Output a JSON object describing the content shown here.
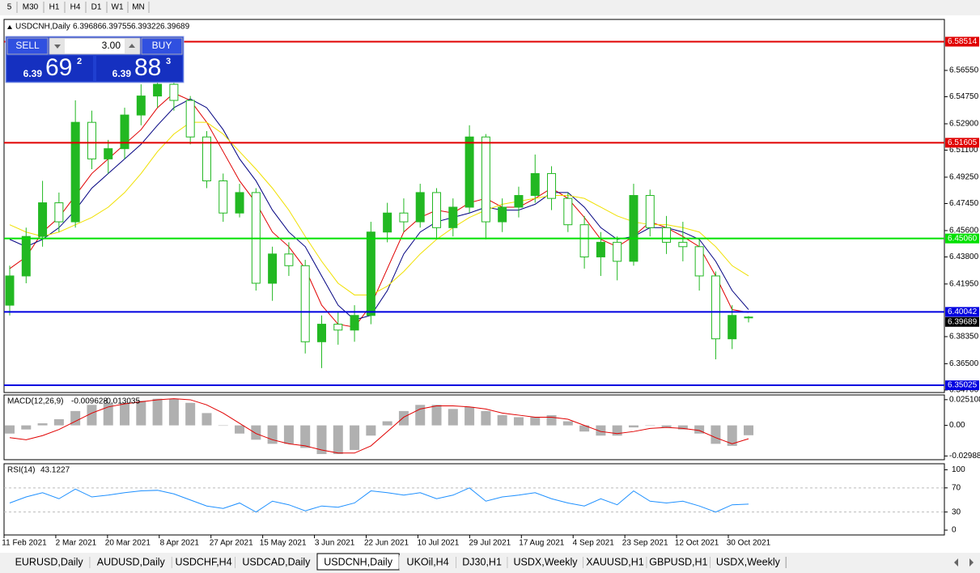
{
  "toolbar": {
    "timeframes": [
      "5",
      "M30",
      "H1",
      "H4",
      "D1",
      "W1",
      "MN"
    ]
  },
  "chart_data": {
    "type": "candlestick",
    "symbol": "USDCNH,Daily",
    "color": "#22b822",
    "candles": [
      [
        6.405,
        6.432,
        6.398,
        6.425
      ],
      [
        6.425,
        6.458,
        6.42,
        6.452
      ],
      [
        6.452,
        6.49,
        6.445,
        6.475
      ],
      [
        6.475,
        6.482,
        6.455,
        6.462
      ],
      [
        6.462,
        6.545,
        6.458,
        6.53
      ],
      [
        6.53,
        6.538,
        6.498,
        6.505
      ],
      [
        6.505,
        6.518,
        6.495,
        6.512
      ],
      [
        6.512,
        6.54,
        6.505,
        6.535
      ],
      [
        6.535,
        6.556,
        6.528,
        6.548
      ],
      [
        6.548,
        6.566,
        6.54,
        6.556
      ],
      [
        6.556,
        6.56,
        6.538,
        6.545
      ],
      [
        6.545,
        6.548,
        6.515,
        6.52
      ],
      [
        6.52,
        6.524,
        6.485,
        6.49
      ],
      [
        6.49,
        6.495,
        6.462,
        6.468
      ],
      [
        6.468,
        6.488,
        6.465,
        6.482
      ],
      [
        6.482,
        6.485,
        6.415,
        6.42
      ],
      [
        6.42,
        6.445,
        6.408,
        6.44
      ],
      [
        6.44,
        6.448,
        6.425,
        6.432
      ],
      [
        6.432,
        6.436,
        6.372,
        6.38
      ],
      [
        6.38,
        6.398,
        6.362,
        6.392
      ],
      [
        6.392,
        6.4,
        6.378,
        6.388
      ],
      [
        6.388,
        6.405,
        6.38,
        6.398
      ],
      [
        6.398,
        6.462,
        6.392,
        6.455
      ],
      [
        6.455,
        6.475,
        6.448,
        6.468
      ],
      [
        6.468,
        6.478,
        6.455,
        6.462
      ],
      [
        6.462,
        6.488,
        6.458,
        6.482
      ],
      [
        6.482,
        6.485,
        6.45,
        6.458
      ],
      [
        6.458,
        6.478,
        6.452,
        6.472
      ],
      [
        6.472,
        6.528,
        6.468,
        6.52
      ],
      [
        6.52,
        6.522,
        6.45,
        6.462
      ],
      [
        6.462,
        6.478,
        6.455,
        6.472
      ],
      [
        6.472,
        6.486,
        6.465,
        6.48
      ],
      [
        6.48,
        6.508,
        6.475,
        6.495
      ],
      [
        6.495,
        6.5,
        6.47,
        6.478
      ],
      [
        6.478,
        6.482,
        6.455,
        6.46
      ],
      [
        6.46,
        6.466,
        6.43,
        6.438
      ],
      [
        6.438,
        6.455,
        6.425,
        6.448
      ],
      [
        6.448,
        6.452,
        6.422,
        6.435
      ],
      [
        6.435,
        6.488,
        6.432,
        6.48
      ],
      [
        6.48,
        6.484,
        6.452,
        6.458
      ],
      [
        6.458,
        6.466,
        6.44,
        6.448
      ],
      [
        6.448,
        6.462,
        6.435,
        6.445
      ],
      [
        6.445,
        6.45,
        6.415,
        6.425
      ],
      [
        6.425,
        6.428,
        6.368,
        6.382
      ],
      [
        6.382,
        6.405,
        6.375,
        6.398
      ],
      [
        6.39686,
        6.39755,
        6.39322,
        6.39689
      ]
    ],
    "overlays": [
      {
        "color": "#e00000",
        "values": [
          6.43,
          6.438,
          6.455,
          6.465,
          6.48,
          6.495,
          6.505,
          6.515,
          6.525,
          6.54,
          6.55,
          6.545,
          6.53,
          6.51,
          6.49,
          6.475,
          6.455,
          6.445,
          6.43,
          6.405,
          6.392,
          6.39,
          6.405,
          6.43,
          6.455,
          6.465,
          6.47,
          6.468,
          6.475,
          6.478,
          6.472,
          6.472,
          6.478,
          6.485,
          6.478,
          6.465,
          6.45,
          6.445,
          6.452,
          6.462,
          6.458,
          6.452,
          6.445,
          6.425,
          6.402,
          6.4
        ]
      },
      {
        "color": "#000080",
        "values": [
          6.45,
          6.445,
          6.45,
          6.458,
          6.47,
          6.485,
          6.495,
          6.505,
          6.515,
          6.528,
          6.54,
          6.546,
          6.54,
          6.525,
          6.505,
          6.49,
          6.47,
          6.455,
          6.445,
          6.425,
          6.405,
          6.395,
          6.398,
          6.415,
          6.44,
          6.455,
          6.462,
          6.465,
          6.468,
          6.472,
          6.47,
          6.47,
          6.474,
          6.482,
          6.482,
          6.472,
          6.458,
          6.45,
          6.452,
          6.458,
          6.458,
          6.455,
          6.45,
          6.435,
          6.415,
          6.402
        ]
      },
      {
        "color": "#f0e000",
        "values": [
          6.46,
          6.455,
          6.452,
          6.455,
          6.46,
          6.465,
          6.472,
          6.482,
          6.495,
          6.51,
          6.522,
          6.53,
          6.53,
          6.522,
          6.51,
          6.498,
          6.485,
          6.47,
          6.452,
          6.435,
          6.42,
          6.412,
          6.412,
          6.418,
          6.428,
          6.44,
          6.45,
          6.458,
          6.465,
          6.47,
          6.474,
          6.476,
          6.478,
          6.48,
          6.48,
          6.478,
          6.472,
          6.466,
          6.462,
          6.46,
          6.46,
          6.458,
          6.455,
          6.445,
          6.432,
          6.425
        ]
      }
    ],
    "ylim": [
      6.3453,
      6.5998
    ],
    "yticks": [
      {
        "value": 6.5655,
        "label": "6.56550"
      },
      {
        "value": 6.5475,
        "label": "6.54750"
      },
      {
        "value": 6.529,
        "label": "6.52900"
      },
      {
        "value": 6.511,
        "label": "6.51100"
      },
      {
        "value": 6.4925,
        "label": "6.49250"
      },
      {
        "value": 6.4745,
        "label": "6.47450"
      },
      {
        "value": 6.456,
        "label": "6.45600"
      },
      {
        "value": 6.438,
        "label": "6.43800"
      },
      {
        "value": 6.4195,
        "label": "6.41950"
      },
      {
        "value": 6.3835,
        "label": "6.38350"
      },
      {
        "value": 6.365,
        "label": "6.36500"
      },
      {
        "value": 6.347,
        "label": "6.34700"
      }
    ],
    "levels": [
      {
        "value": 6.58514,
        "color": "#e00000"
      },
      {
        "value": 6.51605,
        "color": "#e00000"
      },
      {
        "value": {
          "value": 6.4506,
          "label": "6.45060"
        },
        "color": "#00e000"
      },
      {
        "value": 6.40042,
        "color": "#0000e0"
      },
      {
        "value": 6.35025,
        "color": "#0000e0"
      }
    ],
    "x_labels": [
      "11 Feb 2021",
      "2 Mar 2021",
      "20 Mar 2021",
      "8 Apr 2021",
      "27 Apr 2021",
      "15 May 2021",
      "3 Jun 2021",
      "22 Jun 2021",
      "10 Jul 2021",
      "29 Jul 2021",
      "17 Aug 2021",
      "4 Sep 2021",
      "23 Sep 2021",
      "12 Oct 2021",
      "30 Oct 2021"
    ],
    "macd": {
      "title": "MACD(12,26,9)",
      "ylim": [
        -0.0335,
        0.0297
      ],
      "yticks": [
        0.025108,
        {
          "value": 0,
          "label": "0.00"
        },
        -0.029881
      ],
      "histogram": {
        "color": "#b0b0b0",
        "values": [
          -0.008,
          -0.004,
          0.002,
          0.006,
          0.014,
          0.02,
          0.022,
          0.022,
          0.024,
          0.026,
          0.026,
          0.022,
          0.012,
          0.0,
          -0.008,
          -0.014,
          -0.018,
          -0.018,
          -0.022,
          -0.028,
          -0.028,
          -0.024,
          -0.01,
          0.004,
          0.014,
          0.02,
          0.02,
          0.016,
          0.018,
          0.014,
          0.01,
          0.008,
          0.008,
          0.01,
          0.004,
          -0.006,
          -0.01,
          -0.01,
          -0.002,
          0.0,
          -0.002,
          -0.004,
          -0.008,
          -0.018,
          -0.02,
          -0.009628
        ]
      },
      "signal": {
        "color": "#e00000",
        "values": [
          -0.012,
          -0.014,
          -0.01,
          -0.004,
          0.004,
          0.012,
          0.018,
          0.021,
          0.023,
          0.025,
          0.026,
          0.025,
          0.02,
          0.012,
          0.002,
          -0.008,
          -0.014,
          -0.018,
          -0.02,
          -0.024,
          -0.027,
          -0.027,
          -0.02,
          -0.006,
          0.008,
          0.016,
          0.019,
          0.019,
          0.018,
          0.016,
          0.012,
          0.01,
          0.008,
          0.008,
          0.006,
          0.0,
          -0.006,
          -0.008,
          -0.006,
          -0.003,
          -0.002,
          -0.003,
          -0.005,
          -0.012,
          -0.018,
          -0.013035
        ]
      }
    },
    "rsi": {
      "title": "RSI(14)",
      "ylim": [
        -8,
        110
      ],
      "yticks": [
        100,
        70,
        30,
        0
      ],
      "dashed_levels": [
        70,
        30
      ],
      "color": "#1e90ff",
      "values": [
        45,
        55,
        62,
        52,
        68,
        55,
        58,
        62,
        65,
        66,
        60,
        50,
        40,
        36,
        45,
        30,
        48,
        42,
        32,
        40,
        38,
        45,
        65,
        62,
        58,
        62,
        52,
        58,
        70,
        48,
        55,
        58,
        62,
        52,
        45,
        40,
        52,
        42,
        65,
        48,
        45,
        48,
        40,
        30,
        42,
        43.1227
      ]
    }
  },
  "trade_panel": {
    "sell": "SELL",
    "buy": "BUY",
    "volume": "3.00",
    "sell_price": {
      "big": "6.39",
      "main": "69",
      "pip": "2"
    },
    "buy_price": {
      "big": "6.39",
      "main": "88",
      "pip": "3"
    }
  },
  "tabs": [
    "EURUSD,Daily",
    "AUDUSD,Daily",
    "USDCHF,H4",
    "USDCAD,Daily",
    "USDCNH,Daily",
    "UKOil,H4",
    "DJ30,H1",
    "USDX,Weekly",
    "XAUUSD,H1",
    "GBPUSD,H1",
    "USDX,Weekly"
  ],
  "active_tab": 4
}
